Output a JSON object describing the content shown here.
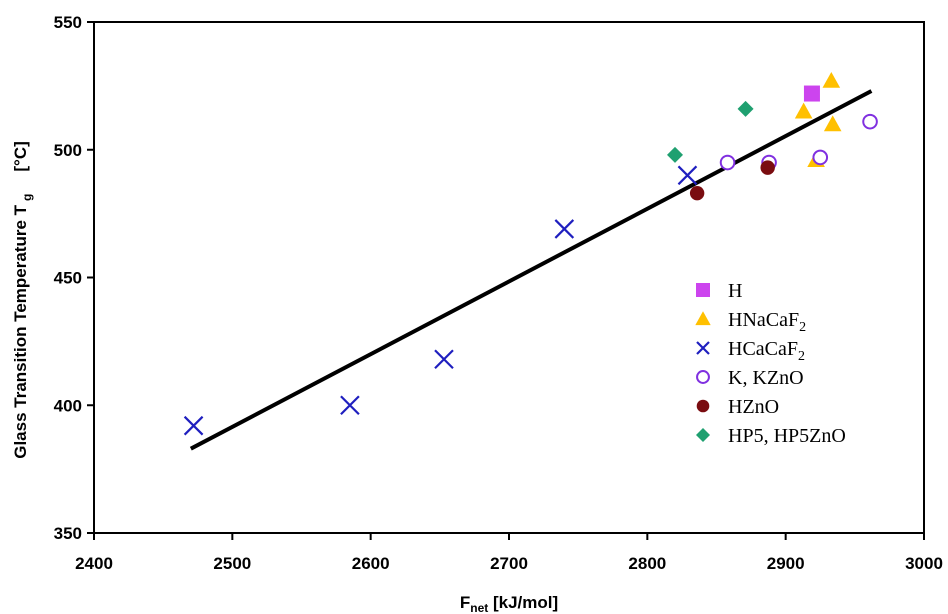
{
  "chart_data": {
    "type": "scatter",
    "xlabel": "F",
    "xlabel_sub": "net",
    "xlabel_unit": " [kJ/mol]",
    "ylabel": "Glass Transition Temperature T",
    "ylabel_sub": "g",
    "ylabel_unit": "[°C]",
    "xlim": [
      2400,
      3000
    ],
    "ylim": [
      350,
      550
    ],
    "x_ticks": [
      "2400",
      "2500",
      "2600",
      "2700",
      "2800",
      "2900",
      "3000"
    ],
    "y_ticks": [
      "350",
      "400",
      "450",
      "500",
      "550"
    ],
    "grid": false,
    "legend_position": "right",
    "series": [
      {
        "name": "H",
        "marker": "square",
        "color": "#cc44ee",
        "points": [
          [
            2919,
            522
          ]
        ]
      },
      {
        "name": "HNaCaF",
        "name_sub": "2",
        "marker": "triangle",
        "color": "#ffc000",
        "points": [
          [
            2913,
            515
          ],
          [
            2933,
            527
          ],
          [
            2934,
            510
          ],
          [
            2922,
            496
          ]
        ]
      },
      {
        "name": "HCaCaF",
        "name_sub": "2",
        "marker": "x",
        "color": "#1f1fbf",
        "points": [
          [
            2472,
            392
          ],
          [
            2585,
            400
          ],
          [
            2653,
            418
          ],
          [
            2740,
            469
          ],
          [
            2829,
            490
          ]
        ]
      },
      {
        "name": "K, KZnO",
        "marker": "circle-open",
        "color": "#8030e0",
        "points": [
          [
            2858,
            495
          ],
          [
            2888,
            495
          ],
          [
            2925,
            497
          ],
          [
            2961,
            511
          ]
        ]
      },
      {
        "name": "HZnO",
        "marker": "circle",
        "color": "#7a0c10",
        "points": [
          [
            2836,
            483
          ],
          [
            2887,
            493
          ]
        ]
      },
      {
        "name": "HP5, HP5ZnO",
        "marker": "diamond",
        "color": "#1fa070",
        "points": [
          [
            2820,
            498
          ],
          [
            2871,
            516
          ]
        ]
      }
    ],
    "trendline": {
      "color": "#000000",
      "points": [
        [
          2470,
          383
        ],
        [
          2962,
          523
        ]
      ]
    }
  }
}
